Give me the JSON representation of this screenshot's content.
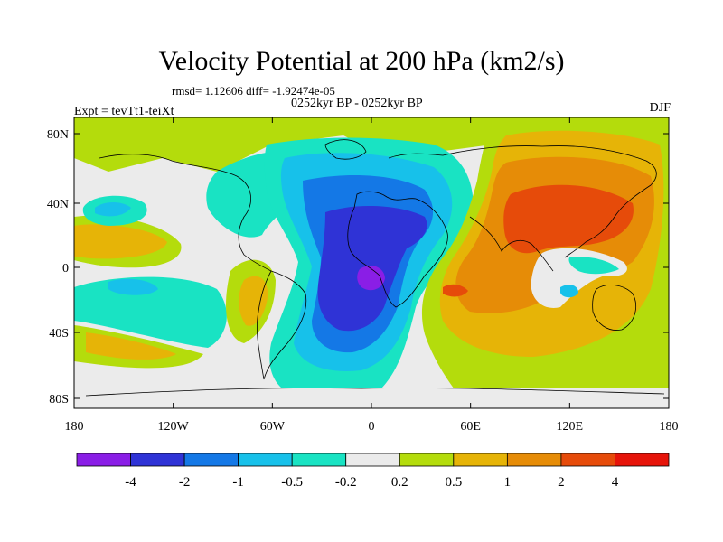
{
  "title": "Velocity Potential at 200 hPa (km2/s)",
  "stats": "rmsd= 1.12606 diff= -1.92474e-05",
  "period": "0252kyr BP - 0252kyr BP",
  "experiment": "Expt = tevTt1-teiXt",
  "season": "DJF",
  "x_ticks": [
    "180",
    "120W",
    "60W",
    "0",
    "60E",
    "120E",
    "180"
  ],
  "y_ticks": [
    "80N",
    "40N",
    "0",
    "40S",
    "80S"
  ],
  "colorbar": {
    "colors": [
      "#8a1ee6",
      "#2f33d6",
      "#1478e6",
      "#17c1ea",
      "#19e3c3",
      "#ebebeb",
      "#b4dc0c",
      "#e6b407",
      "#e68c07",
      "#e64b0a",
      "#e6140a"
    ],
    "labels": [
      "-4",
      "-2",
      "-1",
      "-0.5",
      "-0.2",
      "0.2",
      "0.5",
      "1",
      "2",
      "4"
    ]
  }
}
